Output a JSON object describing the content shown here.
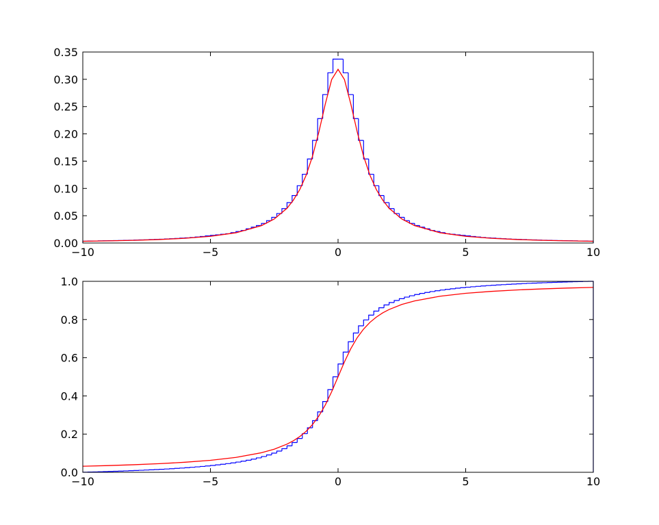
{
  "chart_data": [
    {
      "type": "histogram",
      "bins": [
        -10,
        -9.8,
        -9.6,
        -9.4,
        -9.2,
        -9,
        -8.8,
        -8.6,
        -8.4,
        -8.2,
        -8,
        -7.8,
        -7.6,
        -7.4,
        -7.2,
        -7,
        -6.8,
        -6.6,
        -6.4,
        -6.2,
        -6,
        -5.8,
        -5.6,
        -5.4,
        -5.2,
        -5,
        -4.8,
        -4.6,
        -4.4,
        -4.2,
        -4,
        -3.8,
        -3.6,
        -3.4,
        -3.2,
        -3,
        -2.8,
        -2.6,
        -2.4,
        -2.2,
        -2,
        -1.8,
        -1.6,
        -1.4,
        -1.2,
        -1,
        -0.8,
        -0.6,
        -0.4,
        -0.2,
        0,
        0.2,
        0.4,
        0.6,
        0.8,
        1,
        1.2,
        1.4,
        1.6,
        1.8,
        2,
        2.2,
        2.4,
        2.6,
        2.8,
        3,
        3.2,
        3.4,
        3.6,
        3.8,
        4,
        4.2,
        4.4,
        4.6,
        4.8,
        5,
        5.2,
        5.4,
        5.6,
        5.8,
        6,
        6.2,
        6.4,
        6.6,
        6.8,
        7,
        7.2,
        7.4,
        7.6,
        7.8,
        8,
        8.2,
        8.4,
        8.6,
        8.8,
        9,
        9.2,
        9.4,
        9.6,
        9.8,
        10
      ],
      "values": [
        0.0034,
        0.0036,
        0.0037,
        0.0039,
        0.0041,
        0.0042,
        0.0044,
        0.0046,
        0.0049,
        0.0051,
        0.0054,
        0.0056,
        0.0059,
        0.0063,
        0.0066,
        0.007,
        0.0074,
        0.0079,
        0.0084,
        0.0089,
        0.0095,
        0.01,
        0.011,
        0.012,
        0.013,
        0.014,
        0.015,
        0.016,
        0.017,
        0.019,
        0.021,
        0.023,
        0.026,
        0.029,
        0.032,
        0.036,
        0.041,
        0.047,
        0.054,
        0.063,
        0.074,
        0.087,
        0.105,
        0.126,
        0.154,
        0.188,
        0.228,
        0.272,
        0.312,
        0.337,
        0.337,
        0.312,
        0.272,
        0.228,
        0.188,
        0.154,
        0.126,
        0.105,
        0.087,
        0.074,
        0.063,
        0.054,
        0.047,
        0.041,
        0.036,
        0.032,
        0.029,
        0.026,
        0.023,
        0.021,
        0.019,
        0.017,
        0.016,
        0.015,
        0.014,
        0.013,
        0.012,
        0.011,
        0.01,
        0.0095,
        0.0089,
        0.0084,
        0.0079,
        0.0074,
        0.007,
        0.0066,
        0.0063,
        0.0059,
        0.0056,
        0.0054,
        0.0051,
        0.0049,
        0.0046,
        0.0044,
        0.0042,
        0.0041,
        0.0039,
        0.0037,
        0.0036,
        0.0034
      ],
      "color": "#0000ff",
      "line": {
        "color": "#ff0000",
        "x": [
          -10,
          -9,
          -8,
          -7,
          -6,
          -5,
          -4,
          -3,
          -2.5,
          -2,
          -1.75,
          -1.5,
          -1.25,
          -1,
          -0.75,
          -0.5,
          -0.25,
          0,
          0.25,
          0.5,
          0.75,
          1,
          1.25,
          1.5,
          1.75,
          2,
          2.5,
          3,
          4,
          5,
          6,
          7,
          8,
          9,
          10
        ],
        "values": [
          0.00315,
          0.00388,
          0.0049,
          0.00637,
          0.0086,
          0.01224,
          0.01872,
          0.03183,
          0.0439,
          0.06366,
          0.0786,
          0.09794,
          0.1242,
          0.15915,
          0.20372,
          0.25465,
          0.29959,
          0.31831,
          0.29959,
          0.25465,
          0.20372,
          0.15915,
          0.1242,
          0.09794,
          0.0786,
          0.06366,
          0.0439,
          0.03183,
          0.01872,
          0.01224,
          0.0086,
          0.00637,
          0.0049,
          0.00388,
          0.00315
        ]
      },
      "xlim": [
        -10,
        10
      ],
      "ylim": [
        0,
        0.35
      ],
      "xticks": [
        {
          "value": -10,
          "label": "−10"
        },
        {
          "value": -5,
          "label": "−5"
        },
        0,
        5,
        10
      ],
      "yticks": [
        {
          "value": 0,
          "label": "0.00"
        },
        {
          "value": 0.05,
          "label": "0.05"
        },
        {
          "value": 0.1,
          "label": "0.10"
        },
        {
          "value": 0.15,
          "label": "0.15"
        },
        {
          "value": 0.2,
          "label": "0.20"
        },
        {
          "value": 0.25,
          "label": "0.25"
        },
        {
          "value": 0.3,
          "label": "0.30"
        },
        {
          "value": 0.35,
          "label": "0.35"
        }
      ]
    },
    {
      "type": "histogram",
      "bins": [
        -10,
        -9.8,
        -9.6,
        -9.4,
        -9.2,
        -9,
        -8.8,
        -8.6,
        -8.4,
        -8.2,
        -8,
        -7.8,
        -7.6,
        -7.4,
        -7.2,
        -7,
        -6.8,
        -6.6,
        -6.4,
        -6.2,
        -6,
        -5.8,
        -5.6,
        -5.4,
        -5.2,
        -5,
        -4.8,
        -4.6,
        -4.4,
        -4.2,
        -4,
        -3.8,
        -3.6,
        -3.4,
        -3.2,
        -3,
        -2.8,
        -2.6,
        -2.4,
        -2.2,
        -2,
        -1.8,
        -1.6,
        -1.4,
        -1.2,
        -1,
        -0.8,
        -0.6,
        -0.4,
        -0.2,
        0,
        0.2,
        0.4,
        0.6,
        0.8,
        1,
        1.2,
        1.4,
        1.6,
        1.8,
        2,
        2.2,
        2.4,
        2.6,
        2.8,
        3,
        3.2,
        3.4,
        3.6,
        3.8,
        4,
        4.2,
        4.4,
        4.6,
        4.8,
        5,
        5.2,
        5.4,
        5.6,
        5.8,
        6,
        6.2,
        6.4,
        6.6,
        6.8,
        7,
        7.2,
        7.4,
        7.6,
        7.8,
        8,
        8.2,
        8.4,
        8.6,
        8.8,
        9,
        9.2,
        9.4,
        9.6,
        9.8,
        10
      ],
      "values": [
        0.0007,
        0.0014,
        0.0021,
        0.0029,
        0.0037,
        0.0046,
        0.0055,
        0.0064,
        0.0074,
        0.0084,
        0.0095,
        0.0106,
        0.0118,
        0.013,
        0.0143,
        0.0157,
        0.0172,
        0.0188,
        0.0205,
        0.0222,
        0.0241,
        0.0262,
        0.0284,
        0.0307,
        0.0332,
        0.0359,
        0.0389,
        0.0421,
        0.0455,
        0.0494,
        0.0536,
        0.0582,
        0.0633,
        0.0691,
        0.0755,
        0.0827,
        0.0909,
        0.1003,
        0.1111,
        0.1237,
        0.1385,
        0.156,
        0.1769,
        0.2022,
        0.233,
        0.2707,
        0.3163,
        0.3706,
        0.4329,
        0.5,
        0.5671,
        0.6294,
        0.6837,
        0.7293,
        0.767,
        0.7978,
        0.8231,
        0.844,
        0.8615,
        0.8763,
        0.8889,
        0.8997,
        0.9091,
        0.9173,
        0.9245,
        0.9309,
        0.9367,
        0.9418,
        0.9464,
        0.9506,
        0.9545,
        0.9579,
        0.9611,
        0.9641,
        0.9668,
        0.9693,
        0.9716,
        0.9738,
        0.9759,
        0.9778,
        0.9795,
        0.9812,
        0.9828,
        0.9843,
        0.9857,
        0.987,
        0.9882,
        0.9894,
        0.9905,
        0.9916,
        0.9926,
        0.9936,
        0.9945,
        0.9954,
        0.9963,
        0.9971,
        0.9979,
        0.9986,
        0.9993,
        1.0
      ],
      "color": "#0000ff",
      "line": {
        "color": "#ff0000",
        "x": [
          -10,
          -9,
          -8,
          -7,
          -6,
          -5,
          -4,
          -3,
          -2.5,
          -2,
          -1.75,
          -1.5,
          -1.25,
          -1,
          -0.75,
          -0.5,
          -0.25,
          0,
          0.25,
          0.5,
          0.75,
          1,
          1.25,
          1.5,
          1.75,
          2,
          2.5,
          3,
          4,
          5,
          6,
          7,
          8,
          9,
          10
        ],
        "values": [
          0.03173,
          0.03521,
          0.03959,
          0.04517,
          0.05257,
          0.06283,
          0.07798,
          0.10242,
          0.12112,
          0.14758,
          0.16525,
          0.18717,
          0.21478,
          0.25,
          0.29517,
          0.35242,
          0.42202,
          0.5,
          0.57798,
          0.64758,
          0.70483,
          0.75,
          0.78522,
          0.81283,
          0.83475,
          0.85242,
          0.87888,
          0.89758,
          0.92202,
          0.93717,
          0.94743,
          0.95483,
          0.96041,
          0.96479,
          0.96827
        ]
      },
      "xlim": [
        -10,
        10
      ],
      "ylim": [
        0,
        1
      ],
      "xticks": [
        {
          "value": -10,
          "label": "−10"
        },
        {
          "value": -5,
          "label": "−5"
        },
        0,
        5,
        10
      ],
      "yticks": [
        {
          "value": 0,
          "label": "0.0"
        },
        {
          "value": 0.2,
          "label": "0.2"
        },
        {
          "value": 0.4,
          "label": "0.4"
        },
        {
          "value": 0.6,
          "label": "0.6"
        },
        {
          "value": 0.8,
          "label": "0.8"
        },
        {
          "value": 1,
          "label": "1.0"
        }
      ]
    }
  ]
}
